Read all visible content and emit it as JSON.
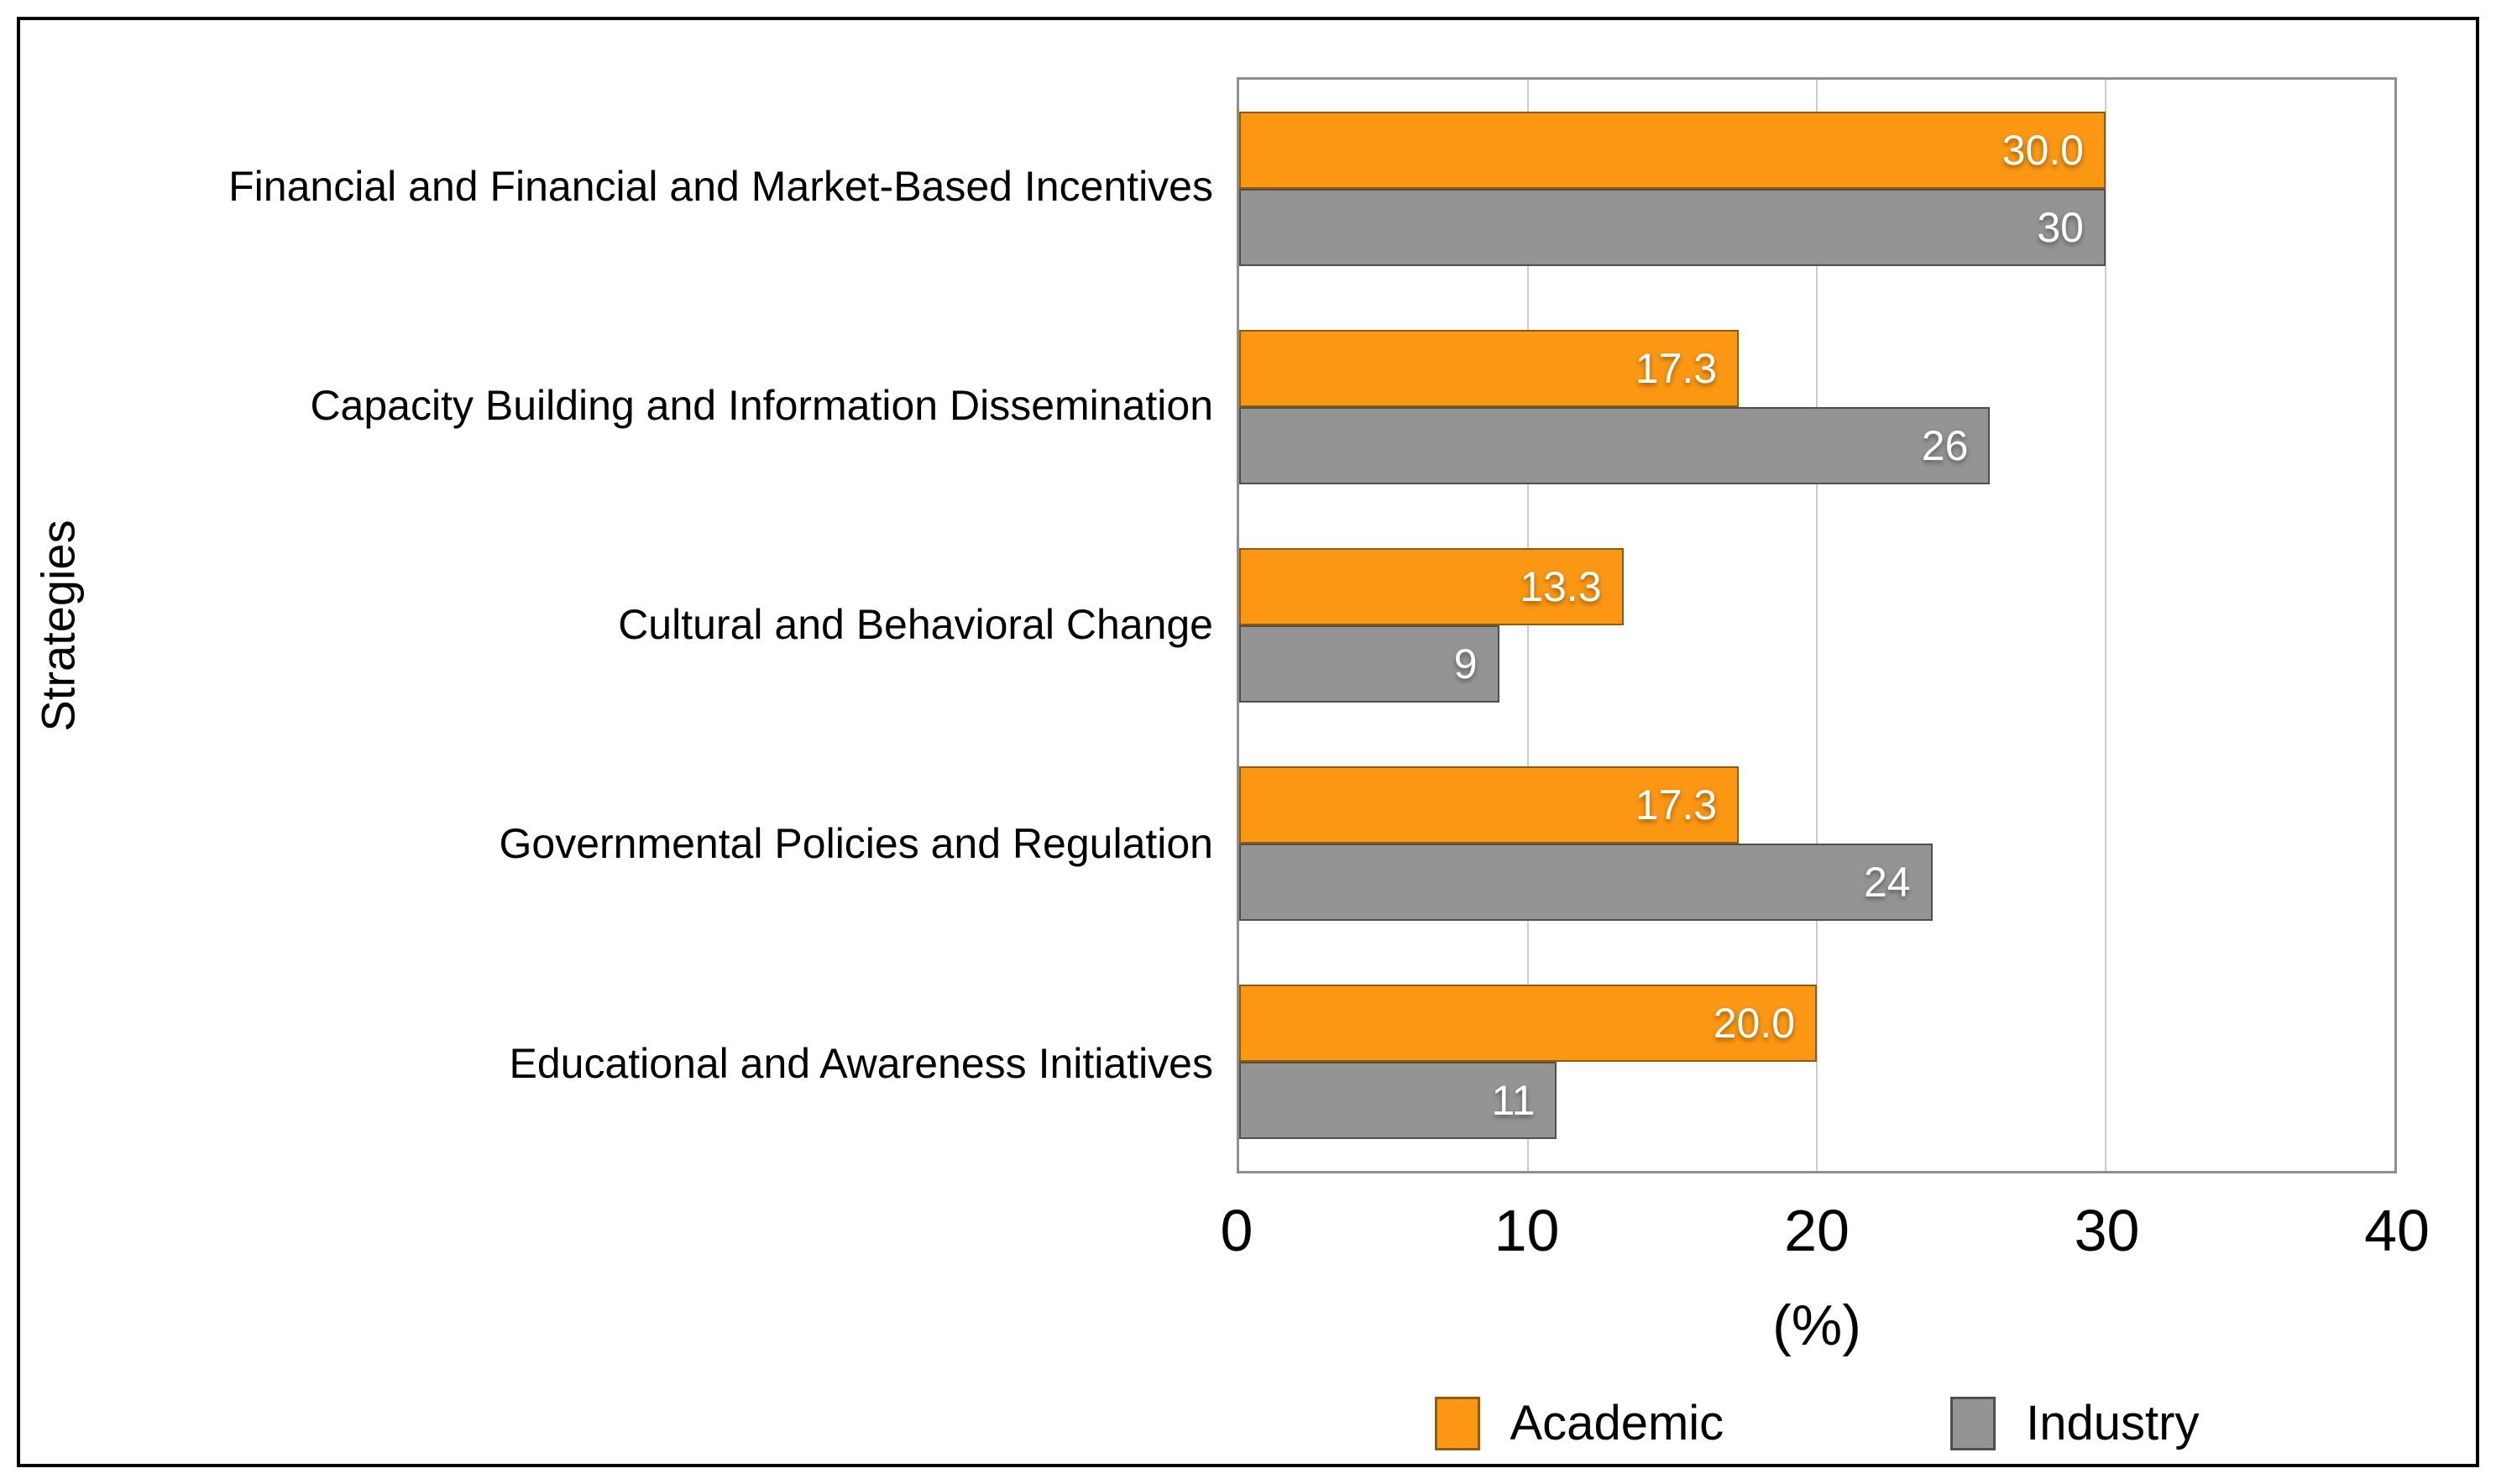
{
  "chart_data": {
    "type": "bar",
    "orientation": "horizontal",
    "title": "",
    "xlabel": "(%)",
    "ylabel": "Strategies",
    "xlim": [
      0,
      40
    ],
    "xticks": [
      0,
      10,
      20,
      30,
      40
    ],
    "grid": "vertical",
    "legend_position": "bottom",
    "categories": [
      "Financial and Financial and Market-Based Incentives",
      "Capacity Building and Information Dissemination",
      "Cultural and Behavioral Change",
      "Governmental Policies and Regulation",
      "Educational and Awareness Initiatives"
    ],
    "series": [
      {
        "name": "Academic",
        "color": "#FB9712",
        "edge_color": "#8a5d10",
        "values": [
          30,
          17.3,
          13.3,
          17.3,
          20
        ],
        "labels": [
          "30.0",
          "17.3",
          "13.3",
          "17.3",
          "20.0"
        ]
      },
      {
        "name": "Industry",
        "color": "#949494",
        "edge_color": "#4f4f4f",
        "values": [
          30,
          26,
          9,
          24,
          11
        ],
        "labels": [
          "30",
          "26",
          "9",
          "24",
          "11"
        ]
      }
    ],
    "value_label_color": "#ffffff",
    "grid_color": "#cccccc",
    "plot_border_color": "#8e8e8e"
  }
}
